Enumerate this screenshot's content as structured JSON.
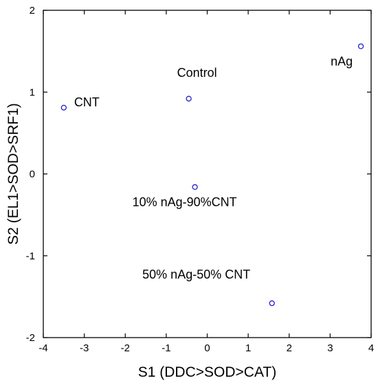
{
  "chart_data": {
    "type": "scatter",
    "title": "",
    "xlabel": "S1 (DDC>SOD>CAT)",
    "ylabel": "S2 (EL1>SOD>SRF1)",
    "xlim": [
      -4,
      4
    ],
    "ylim": [
      -2,
      2
    ],
    "xticks": [
      "-4",
      "-3",
      "-2",
      "-1",
      "0",
      "1",
      "2",
      "3",
      "4"
    ],
    "yticks": [
      "-2",
      "-1",
      "0",
      "1",
      "2"
    ],
    "grid": false,
    "legend": "none",
    "marker_color": "#2020d0",
    "points": [
      {
        "label": "CNT",
        "x": -3.5,
        "y": 0.81
      },
      {
        "label": "Control",
        "x": -0.45,
        "y": 0.92
      },
      {
        "label": "nAg",
        "x": 3.75,
        "y": 1.56
      },
      {
        "label": "10% nAg-90%CNT",
        "x": -0.3,
        "y": -0.16
      },
      {
        "label": "50% nAg-50% CNT",
        "x": 1.58,
        "y": -1.58
      }
    ]
  }
}
